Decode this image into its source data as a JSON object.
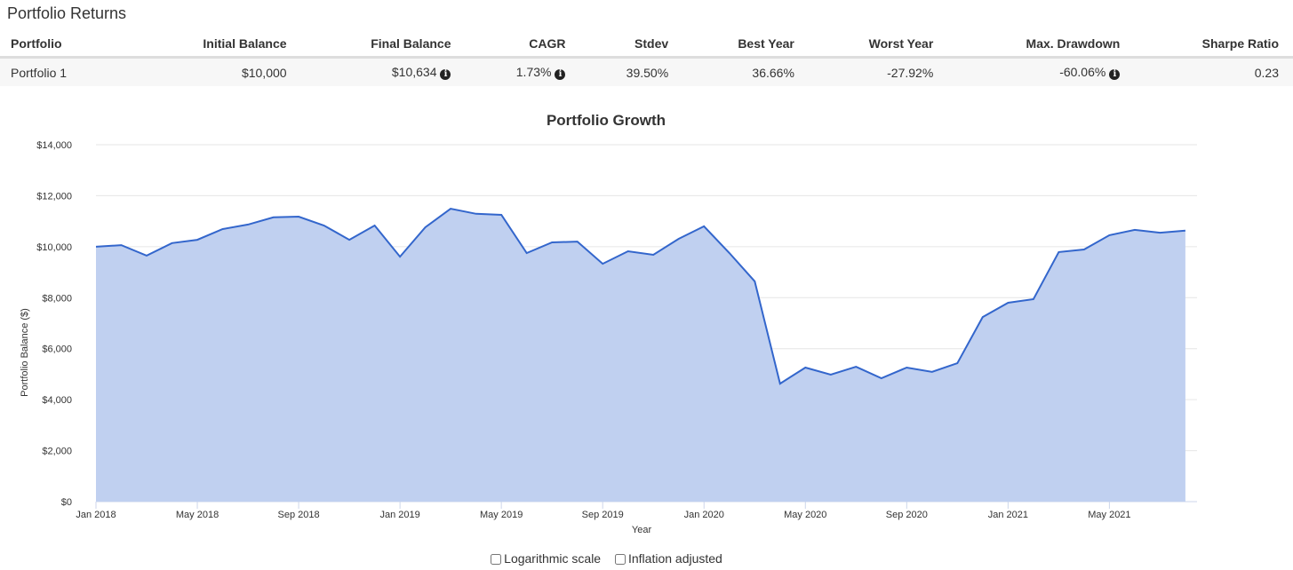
{
  "page_title": "Portfolio Returns",
  "table": {
    "headers": [
      "Portfolio",
      "Initial Balance",
      "Final Balance",
      "CAGR",
      "Stdev",
      "Best Year",
      "Worst Year",
      "Max. Drawdown",
      "Sharpe Ratio"
    ],
    "rows": [
      [
        "Portfolio 1",
        "$10,000",
        "$10,634",
        "1.73%",
        "39.50%",
        "36.66%",
        "-27.92%",
        "-60.06%",
        "0.23"
      ]
    ]
  },
  "chart_data": {
    "type": "area",
    "title": "Portfolio Growth",
    "xlabel": "Year",
    "ylabel": "Portfolio Balance ($)",
    "ylim": [
      0,
      14000
    ],
    "yticks": [
      "$0",
      "$2,000",
      "$4,000",
      "$6,000",
      "$8,000",
      "$10,000",
      "$12,000",
      "$14,000"
    ],
    "xticks": [
      {
        "label": "Jan 2018",
        "index": 0
      },
      {
        "label": "May 2018",
        "index": 4
      },
      {
        "label": "Sep 2018",
        "index": 8
      },
      {
        "label": "Jan 2019",
        "index": 12
      },
      {
        "label": "May 2019",
        "index": 16
      },
      {
        "label": "Sep 2019",
        "index": 20
      },
      {
        "label": "Jan 2020",
        "index": 24
      },
      {
        "label": "May 2020",
        "index": 28
      },
      {
        "label": "Sep 2020",
        "index": 32
      },
      {
        "label": "Jan 2021",
        "index": 36
      },
      {
        "label": "May 2021",
        "index": 40
      }
    ],
    "series": [
      {
        "name": "Portfolio 1",
        "color": "#3366cc",
        "fill": "#c0d0f0",
        "values": [
          10000,
          10060,
          9650,
          10140,
          10270,
          10690,
          10870,
          11150,
          11180,
          10830,
          10270,
          10830,
          9610,
          10760,
          11490,
          11290,
          11250,
          9750,
          10170,
          10200,
          9330,
          9820,
          9680,
          10310,
          10800,
          9750,
          8640,
          4630,
          5260,
          4980,
          5290,
          4840,
          5260,
          5090,
          5430,
          7240,
          7800,
          7940,
          9790,
          9890,
          10450,
          10660,
          10550,
          10634
        ]
      }
    ]
  },
  "options": {
    "log_label": "Logarithmic scale",
    "inflation_label": "Inflation adjusted"
  }
}
